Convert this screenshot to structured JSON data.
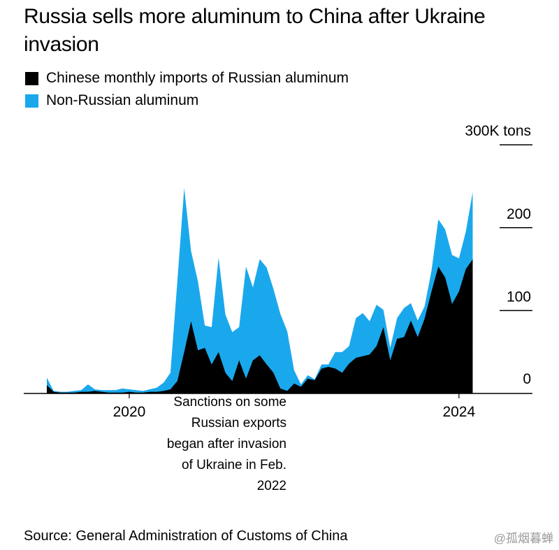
{
  "title": "Russia sells more aluminum to China after Ukraine invasion",
  "legend": [
    {
      "label": "Chinese monthly imports of Russian aluminum",
      "color": "#000000"
    },
    {
      "label": "Non-Russian aluminum",
      "color": "#1aa8ec"
    }
  ],
  "annotation": "Sanctions on some Russian exports began after invasion of Ukraine in Feb. 2022",
  "source": "Source: General Administration of Customs of China",
  "watermark": "@孤烟暮蝉",
  "chart_data": {
    "type": "area",
    "stacked": true,
    "title": "Russia sells more aluminum to China after Ukraine invasion",
    "x_unit": "month",
    "x_start": "2019-01",
    "x_end": "2024-02",
    "y_unit": "tons",
    "ylim": [
      0,
      300000
    ],
    "y_ticks": [
      {
        "value": 0,
        "label": "0"
      },
      {
        "value": 100000,
        "label": "100"
      },
      {
        "value": 200000,
        "label": "200"
      },
      {
        "value": 300000,
        "label": "300K tons"
      }
    ],
    "x_ticks": [
      {
        "value": "2020-01",
        "label": "2020"
      },
      {
        "value": "2024-01",
        "label": "2024"
      }
    ],
    "grid": false,
    "legend_position": "top-left",
    "series": [
      {
        "name": "Chinese monthly imports of Russian aluminum",
        "color": "#000000",
        "values": [
          10000,
          2000,
          1000,
          1000,
          1000,
          2000,
          2000,
          3000,
          2000,
          1000,
          1000,
          1000,
          2000,
          1000,
          1000,
          2000,
          2000,
          3000,
          5000,
          15000,
          50000,
          87000,
          52000,
          55000,
          35000,
          50000,
          25000,
          15000,
          40000,
          18000,
          40000,
          46000,
          35000,
          25000,
          6000,
          3000,
          12000,
          8000,
          18000,
          16000,
          30000,
          32000,
          30000,
          25000,
          36000,
          43000,
          45000,
          47000,
          57000,
          80000,
          40000,
          66000,
          68000,
          88000,
          68000,
          90000,
          123000,
          153000,
          140000,
          108000,
          123000,
          150000,
          162000
        ]
      },
      {
        "name": "Non-Russian aluminum",
        "color": "#1aa8ec",
        "values": [
          9000,
          1000,
          1000,
          1000,
          2000,
          2000,
          9000,
          2000,
          2000,
          3000,
          3000,
          5000,
          3000,
          3000,
          2000,
          3000,
          5000,
          10000,
          20000,
          120000,
          198000,
          85000,
          83000,
          27000,
          45000,
          114000,
          70000,
          59000,
          40000,
          135000,
          88000,
          116000,
          117000,
          101000,
          90000,
          72000,
          16000,
          3000,
          4000,
          1000,
          5000,
          3000,
          20000,
          25000,
          21000,
          48000,
          52000,
          40000,
          50000,
          21000,
          15000,
          25000,
          35000,
          21000,
          20000,
          15000,
          25000,
          57000,
          58000,
          59000,
          40000,
          45000,
          81000
        ]
      }
    ]
  }
}
